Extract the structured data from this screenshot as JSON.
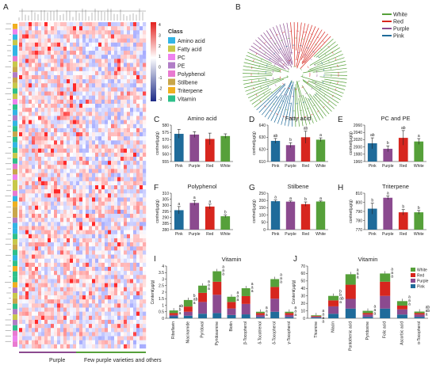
{
  "colors": {
    "pink": "#1f6b9a",
    "purple": "#8b4a8f",
    "red": "#d7261e",
    "white": "#56a03a",
    "class_colors": [
      "#33b5e5",
      "#c8c84a",
      "#ee82ee",
      "#b07cc6",
      "#e87ad0",
      "#c8a64a",
      "#f0b020",
      "#2ec08a"
    ]
  },
  "panel_labels": [
    "A",
    "B",
    "C",
    "D",
    "E",
    "F",
    "G",
    "H",
    "I",
    "J"
  ],
  "heatmap": {
    "legend_title": "Class",
    "classes": [
      "Amino acid",
      "Fatty acid",
      "PC",
      "PE",
      "Polyphenol",
      "Stilbene",
      "Triterpene",
      "Vitamin"
    ],
    "scale_ticks": [
      "4",
      "3",
      "2",
      "1",
      "0",
      "-1",
      "-2",
      "-3"
    ],
    "bottom_labels": [
      "Purple",
      "Few purple varieties and others"
    ]
  },
  "tree": {
    "legend": [
      "White",
      "Red",
      "Purple",
      "Pink"
    ]
  },
  "chart_data": [
    {
      "panel": "C",
      "type": "bar",
      "title": "Amino acid",
      "categories": [
        "Pink",
        "Purple",
        "Red",
        "White"
      ],
      "values": [
        574,
        573.5,
        570.5,
        572.5
      ],
      "errors": [
        3,
        2,
        4,
        1.5
      ],
      "ylim": [
        555,
        580
      ],
      "yticks": [
        555,
        560,
        565,
        570,
        575,
        580
      ],
      "ylabel": "contnet(μg/g)",
      "letters": [
        "",
        "",
        "",
        ""
      ]
    },
    {
      "panel": "D",
      "type": "bar",
      "title": "Fatty acid",
      "categories": [
        "Pink",
        "Purple",
        "Red",
        "White"
      ],
      "values": [
        627,
        623.5,
        630,
        628
      ],
      "errors": [
        2,
        2,
        5,
        1.5
      ],
      "ylim": [
        610,
        640
      ],
      "yticks": [
        610,
        620,
        630,
        640
      ],
      "ylabel": "contnet(μg/g)",
      "letters": [
        "ab",
        "b",
        "ab",
        "a"
      ]
    },
    {
      "panel": "E",
      "type": "bar",
      "title": "PC and PE",
      "categories": [
        "Pink",
        "Purple",
        "Red",
        "White"
      ],
      "values": [
        2010,
        1995,
        2025,
        2015
      ],
      "errors": [
        15,
        8,
        20,
        8
      ],
      "ylim": [
        1960,
        2060
      ],
      "yticks": [
        1960,
        1980,
        2000,
        2020,
        2040,
        2060
      ],
      "ylabel": "contnet(μg/g)",
      "letters": [
        "ab",
        "b",
        "ab",
        "a"
      ]
    },
    {
      "panel": "F",
      "type": "bar",
      "title": "Polyphenol",
      "categories": [
        "Pink",
        "Purple",
        "Red",
        "White"
      ],
      "values": [
        296,
        302,
        299,
        291
      ],
      "errors": [
        3,
        2,
        2,
        1
      ],
      "ylim": [
        280,
        310
      ],
      "yticks": [
        280,
        285,
        290,
        295,
        300,
        305,
        310
      ],
      "ylabel": "contnet(μg/g)",
      "letters": [
        "a",
        "a",
        "a",
        "b"
      ]
    },
    {
      "panel": "G",
      "type": "bar",
      "title": "Stilbene",
      "categories": [
        "Pink",
        "Purple",
        "Red",
        "White"
      ],
      "values": [
        195,
        192,
        175,
        193
      ],
      "errors": [
        8,
        5,
        15,
        4
      ],
      "ylim": [
        0,
        250
      ],
      "yticks": [
        0,
        50,
        100,
        150,
        200,
        250
      ],
      "ylabel": "contnet(μg/g)",
      "letters": [
        "a",
        "a",
        "b",
        "a"
      ]
    },
    {
      "panel": "H",
      "type": "bar",
      "title": "Triterpene",
      "categories": [
        "Pink",
        "Purple",
        "Red",
        "White"
      ],
      "values": [
        793,
        805,
        789,
        789
      ],
      "errors": [
        6,
        2,
        3,
        2
      ],
      "ylim": [
        770,
        810
      ],
      "yticks": [
        770,
        780,
        790,
        800,
        810
      ],
      "ylabel": "contnet(μg/g)",
      "letters": [
        "b",
        "a",
        "b",
        "b"
      ]
    },
    {
      "panel": "I",
      "type": "bar",
      "stacked": true,
      "title": "Vitamin",
      "categories": [
        "Riboflavin",
        "Niacinamide",
        "Pyridoxal",
        "Pyridoxamine",
        "Biotin",
        "β-Tocopherol",
        "δ-Tocotrienol",
        "δ-Tocopherol",
        "γ-Tocopherol"
      ],
      "ylim": [
        0,
        4
      ],
      "yticks": [
        0,
        0.5,
        1.0,
        1.5,
        2.0,
        2.5,
        3.0,
        3.5,
        4.0
      ],
      "ylabel": "Content(μg/g)",
      "series": [
        {
          "name": "Pink",
          "values": [
            0.15,
            0.2,
            0.35,
            0.4,
            0.25,
            0.3,
            0.1,
            0.5,
            0.1
          ]
        },
        {
          "name": "Purple",
          "values": [
            0.1,
            0.3,
            0.9,
            1.4,
            0.5,
            0.8,
            0.15,
            1.0,
            0.15
          ]
        },
        {
          "name": "Red",
          "values": [
            0.15,
            0.4,
            0.7,
            1.0,
            0.5,
            0.6,
            0.15,
            0.9,
            0.15
          ]
        },
        {
          "name": "White",
          "values": [
            0.2,
            0.5,
            0.55,
            0.8,
            0.4,
            0.6,
            0.1,
            0.6,
            0.1
          ]
        }
      ],
      "letters": [
        "ab b a",
        "b ab a",
        "a a a",
        "a a a",
        "a a a",
        "a a a",
        "a a a",
        "a a a",
        "a a a"
      ]
    },
    {
      "panel": "J",
      "type": "bar",
      "stacked": true,
      "title": "Vitamin",
      "categories": [
        "Thiamine",
        "Niacin",
        "Pantothenic acid",
        "Pyridoxine",
        "Folic acid",
        "Ascorbic acid",
        "α-Tocopherol"
      ],
      "ylim": [
        0,
        70
      ],
      "yticks": [
        0,
        10,
        20,
        30,
        40,
        50,
        60,
        70
      ],
      "ylabel": "Content(μg/g)",
      "series": [
        {
          "name": "Pink",
          "values": [
            1,
            6,
            13,
            2,
            13,
            5,
            2
          ]
        },
        {
          "name": "Purple",
          "values": [
            1,
            10,
            13,
            3,
            17,
            7,
            3
          ]
        },
        {
          "name": "Red",
          "values": [
            1,
            8,
            19,
            2,
            19,
            5,
            2
          ]
        },
        {
          "name": "White",
          "values": [
            1,
            6,
            14,
            3,
            11,
            6,
            2
          ]
        }
      ],
      "letters": [
        "a a a a",
        "b b ab a",
        "a a a",
        "a a a",
        "a a a",
        "a a a",
        "ab ab a"
      ]
    }
  ]
}
